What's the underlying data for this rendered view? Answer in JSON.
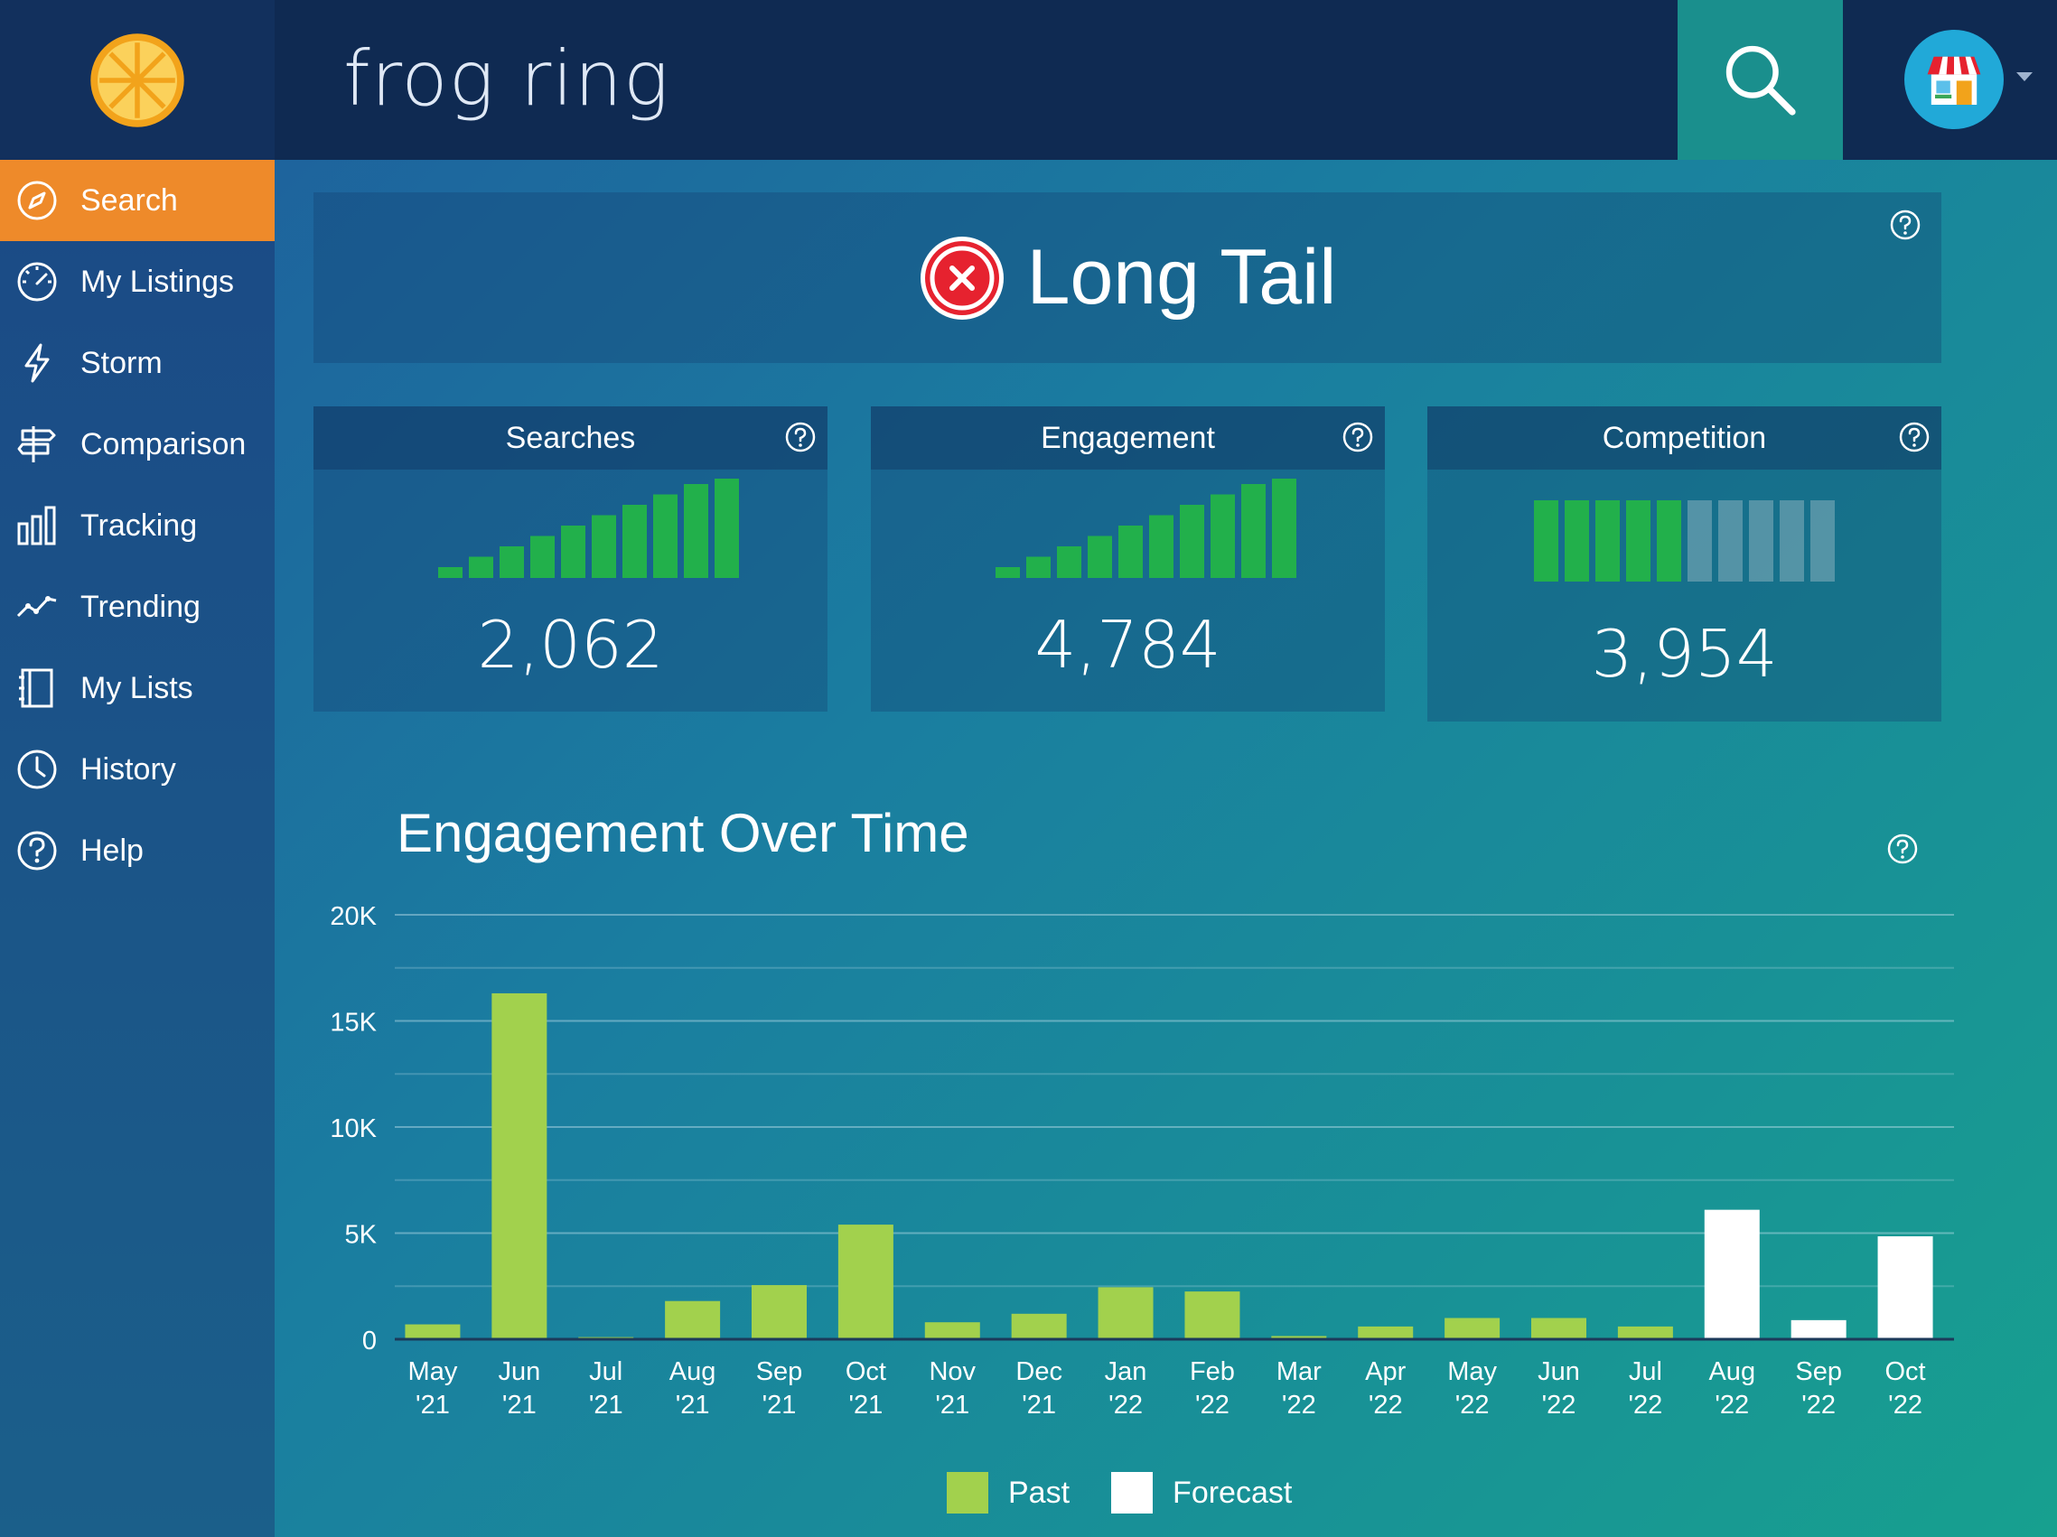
{
  "header": {
    "query": "frog ring",
    "logo_icon": "orange-slice-icon",
    "search_icon": "magnifier-icon",
    "avatar_icon": "shop-storefront-icon"
  },
  "sidebar": {
    "items": [
      {
        "label": "Search",
        "icon": "compass-icon",
        "active": true
      },
      {
        "label": "My Listings",
        "icon": "speedometer-icon"
      },
      {
        "label": "Storm",
        "icon": "lightning-icon"
      },
      {
        "label": "Comparison",
        "icon": "signpost-icon"
      },
      {
        "label": "Tracking",
        "icon": "bar-chart-icon"
      },
      {
        "label": "Trending",
        "icon": "trend-line-icon"
      },
      {
        "label": "My Lists",
        "icon": "notebook-icon"
      },
      {
        "label": "History",
        "icon": "clock-icon"
      },
      {
        "label": "Help",
        "icon": "question-icon"
      }
    ]
  },
  "status": {
    "label": "Long Tail",
    "icon": "error-x-icon",
    "icon_color": "#e6222f"
  },
  "metrics": [
    {
      "title": "Searches",
      "value": "2,062",
      "level": 10,
      "max_level": 10
    },
    {
      "title": "Engagement",
      "value": "4,784",
      "level": 10,
      "max_level": 10
    },
    {
      "title": "Competition",
      "value": "3,954",
      "level": 5,
      "max_level": 10
    }
  ],
  "colors": {
    "accent": "#ee8a2a",
    "bar_green": "#22b04b",
    "past": "#a2d14d",
    "forecast": "#ffffff"
  },
  "chart_data": {
    "type": "bar",
    "title": "Engagement Over Time",
    "categories": [
      "May '21",
      "Jun '21",
      "Jul '21",
      "Aug '21",
      "Sep '21",
      "Oct '21",
      "Nov '21",
      "Dec '21",
      "Jan '22",
      "Feb '22",
      "Mar '22",
      "Apr '22",
      "May '22",
      "Jun '22",
      "Jul '22",
      "Aug '22",
      "Sep '22",
      "Oct '22"
    ],
    "values": [
      700,
      16300,
      100,
      1800,
      2550,
      5400,
      800,
      1200,
      2450,
      2250,
      150,
      600,
      1000,
      1000,
      600,
      6100,
      900,
      4850
    ],
    "kinds": [
      "past",
      "past",
      "past",
      "past",
      "past",
      "past",
      "past",
      "past",
      "past",
      "past",
      "past",
      "past",
      "past",
      "past",
      "past",
      "forecast",
      "forecast",
      "forecast"
    ],
    "y_ticks": [
      {
        "v": 0,
        "label": "0"
      },
      {
        "v": 5000,
        "label": "5K"
      },
      {
        "v": 10000,
        "label": "10K"
      },
      {
        "v": 15000,
        "label": "15K"
      },
      {
        "v": 20000,
        "label": "20K"
      }
    ],
    "ylim": [
      0,
      20000
    ],
    "grid": true,
    "legend": [
      {
        "name": "Past",
        "color": "#a2d14d"
      },
      {
        "name": "Forecast",
        "color": "#ffffff"
      }
    ],
    "legend_position": "bottom-center"
  }
}
